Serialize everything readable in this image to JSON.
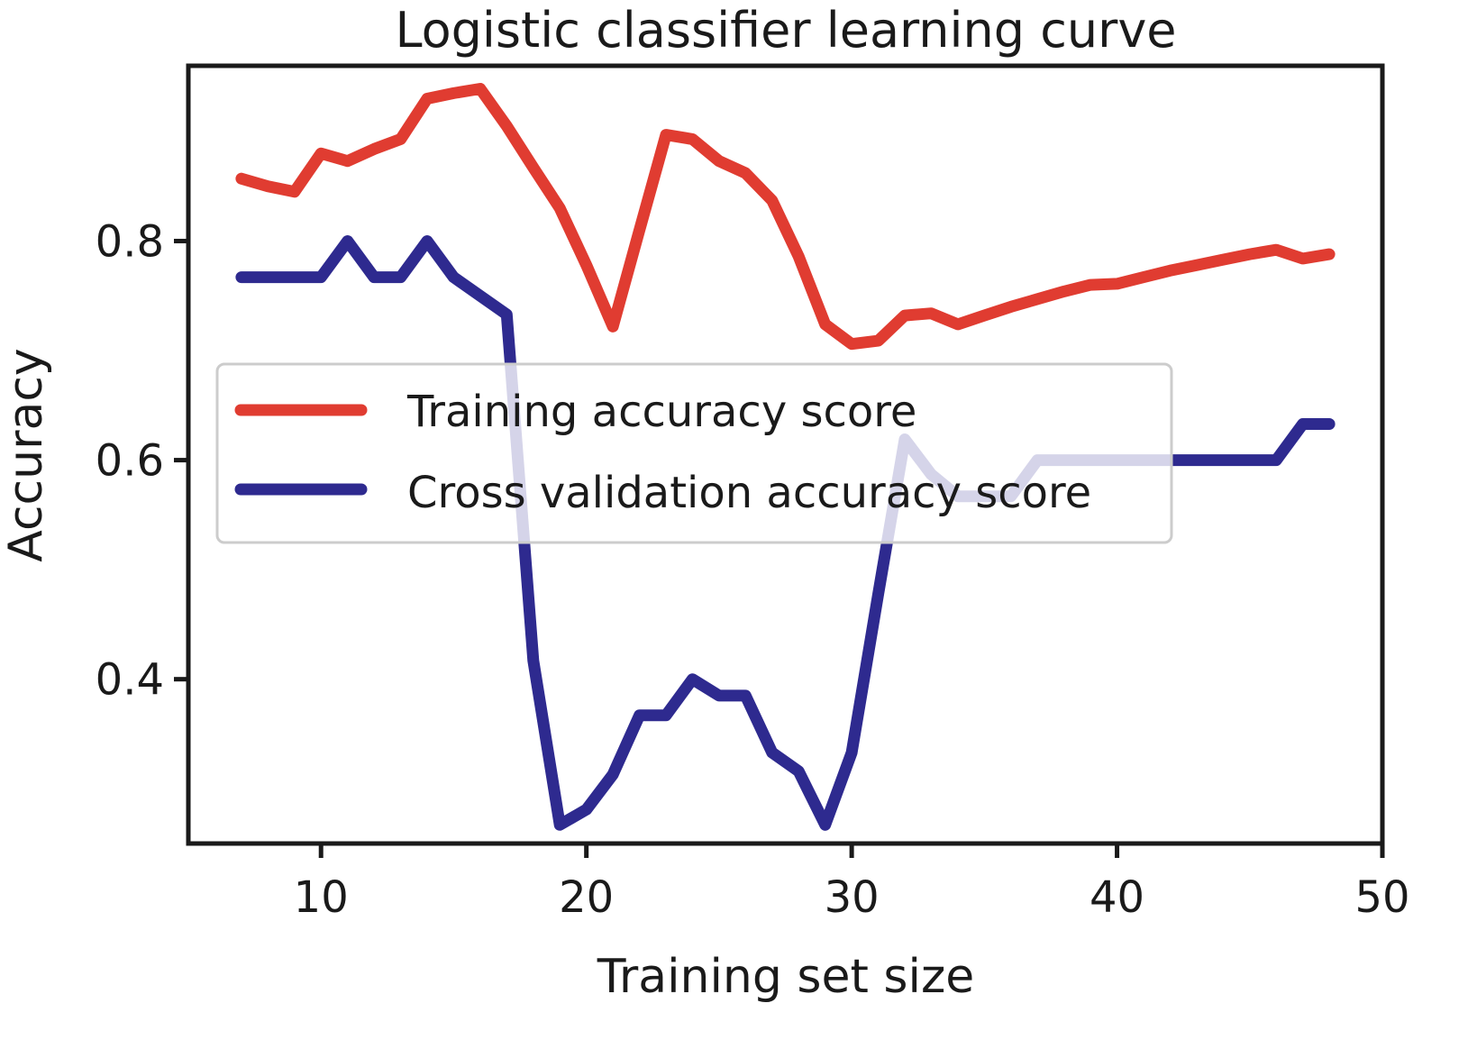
{
  "chart_data": {
    "type": "line",
    "title": "Logistic classifier learning curve",
    "xlabel": "Training set size",
    "ylabel": "Accuracy",
    "xlim": [
      5,
      50
    ],
    "ylim": [
      0.25,
      0.96
    ],
    "xticks": [
      10,
      20,
      30,
      40,
      50
    ],
    "yticks": [
      0.4,
      0.6,
      0.8
    ],
    "xtick_labels": [
      "10",
      "20",
      "30",
      "40",
      "50"
    ],
    "ytick_labels": [
      "0.4",
      "0.6",
      "0.8"
    ],
    "grid": false,
    "legend_position": "center",
    "x": [
      7,
      8,
      9,
      10,
      11,
      12,
      13,
      14,
      15,
      16,
      17,
      18,
      19,
      20,
      21,
      22,
      23,
      24,
      25,
      26,
      27,
      28,
      29,
      30,
      31,
      32,
      33,
      34,
      35,
      36,
      37,
      38,
      39,
      40,
      41,
      42,
      43,
      44,
      45,
      46,
      47,
      48
    ],
    "series": [
      {
        "name": "Training accuracy score",
        "color": "#e03c31",
        "values": [
          0.857,
          0.85,
          0.845,
          0.88,
          0.873,
          0.884,
          0.893,
          0.93,
          0.935,
          0.939,
          0.905,
          0.867,
          0.83,
          0.778,
          0.722,
          0.81,
          0.897,
          0.893,
          0.873,
          0.862,
          0.837,
          0.786,
          0.724,
          0.706,
          0.709,
          0.732,
          0.734,
          0.724,
          0.732,
          0.74,
          0.747,
          0.754,
          0.76,
          0.761,
          0.767,
          0.773,
          0.778,
          0.783,
          0.788,
          0.792,
          0.784,
          0.788
        ]
      },
      {
        "name": "Cross validation accuracy score",
        "color": "#2e2a8f",
        "values": [
          0.767,
          0.767,
          0.767,
          0.767,
          0.8,
          0.767,
          0.767,
          0.8,
          0.767,
          0.75,
          0.733,
          0.417,
          0.267,
          0.281,
          0.313,
          0.367,
          0.367,
          0.4,
          0.385,
          0.385,
          0.333,
          0.316,
          0.267,
          0.333,
          0.478,
          0.619,
          0.587,
          0.567,
          0.567,
          0.567,
          0.6,
          0.6,
          0.6,
          0.6,
          0.6,
          0.6,
          0.6,
          0.6,
          0.6,
          0.6,
          0.633,
          0.633
        ]
      }
    ]
  }
}
